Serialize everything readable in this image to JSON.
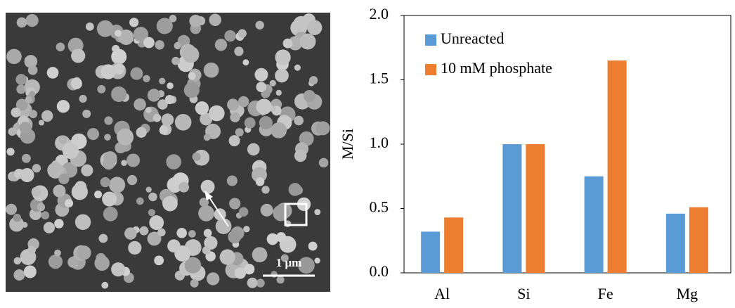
{
  "image": {
    "scale_bar_label": "1 μm"
  },
  "chart_data": {
    "type": "bar",
    "categories": [
      "Al",
      "Si",
      "Fe",
      "Mg"
    ],
    "series": [
      {
        "name": "Unreacted",
        "color": "#5b9bd5",
        "values": [
          0.32,
          1.0,
          0.75,
          0.46
        ]
      },
      {
        "name": "10 mM phosphate",
        "color": "#ed7d31",
        "values": [
          0.43,
          1.0,
          1.65,
          0.51
        ]
      }
    ],
    "y_label": "M/Si",
    "ylim": [
      0,
      2
    ],
    "yticks": [
      {
        "value": 0,
        "label": "0.0"
      },
      {
        "value": 0.5,
        "label": "0.5"
      },
      {
        "value": 1,
        "label": "1.0"
      },
      {
        "value": 1.5,
        "label": "1.5"
      },
      {
        "value": 2,
        "label": "2.0"
      }
    ],
    "legend": "top-left"
  }
}
